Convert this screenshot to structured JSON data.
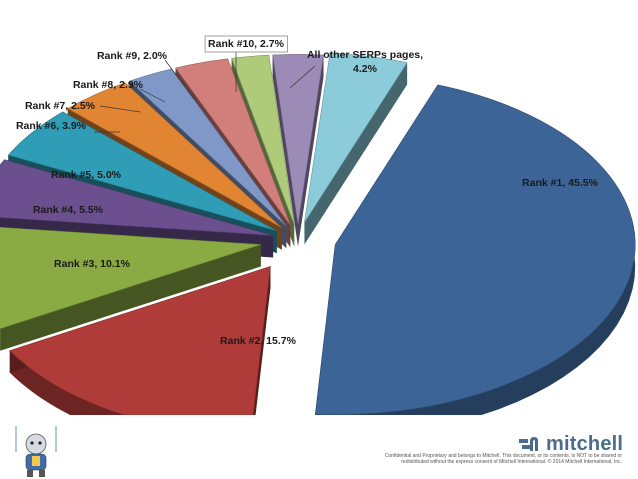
{
  "chart_data": {
    "type": "pie",
    "title": "",
    "slices": [
      {
        "label": "Rank #1, 45.5%",
        "value": 45.5,
        "color": "#3c6497"
      },
      {
        "label": "Rank #2, 15.7%",
        "value": 15.7,
        "color": "#b03c3a"
      },
      {
        "label": "Rank #3, 10.1%",
        "value": 10.1,
        "color": "#8aab44"
      },
      {
        "label": "Rank #4, 5.5%",
        "value": 5.5,
        "color": "#6c4f8f"
      },
      {
        "label": "Rank #5, 5.0%",
        "value": 5.0,
        "color": "#2f9db5"
      },
      {
        "label": "Rank #6, 3.9%",
        "value": 3.9,
        "color": "#e28533"
      },
      {
        "label": "Rank #7, 2.5%",
        "value": 2.5,
        "color": "#7f98c8"
      },
      {
        "label": "Rank #8, 2.9%",
        "value": 2.9,
        "color": "#d27e7b"
      },
      {
        "label": "Rank #9, 2.0%",
        "value": 2.0,
        "color": "#aecb7a"
      },
      {
        "label": "Rank #10, 2.7%",
        "value": 2.7,
        "color": "#9c8bb7"
      },
      {
        "label": "All other SERPs pages, 4.2%",
        "value": 4.2,
        "color": "#8ccbd9"
      }
    ]
  },
  "footer": {
    "confidential": "Confidential and Proprietary and belongs to Mitchell. This document, or its contents, is NOT to be shared or redistributed without the express consent of Mitchell International. © 2014 Mitchell International, Inc.",
    "brand": "mitchell",
    "brand_color": "#4a6d8f"
  }
}
